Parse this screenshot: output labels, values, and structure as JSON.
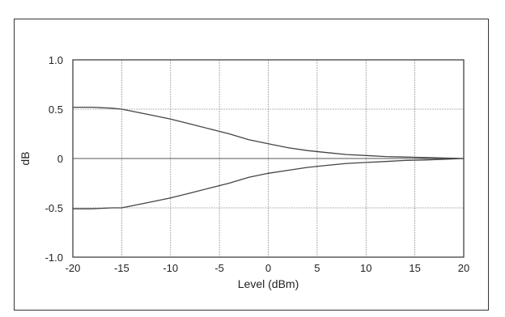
{
  "chart_data": {
    "type": "line",
    "xlabel": "Level (dBm)",
    "ylabel": "dB",
    "xlim": [
      -20,
      20
    ],
    "ylim": [
      -1.0,
      1.0
    ],
    "xticks": [
      -20,
      -15,
      -10,
      -5,
      0,
      5,
      10,
      15,
      20
    ],
    "xtick_labels": [
      "-20",
      "-15",
      "-10",
      "-5",
      "0",
      "5",
      "10",
      "15",
      "20"
    ],
    "yticks": [
      1.0,
      0.5,
      0,
      -0.5,
      -1.0
    ],
    "ytick_labels": [
      "1.0",
      "0.5",
      "0",
      "-0.5",
      "-1.0"
    ],
    "grid": true,
    "legend": "none",
    "line_color": "#444444",
    "series": [
      {
        "x": [
          -20,
          -18,
          -16,
          -15,
          -14,
          -12,
          -10,
          -8,
          -6,
          -4,
          -2,
          0,
          2,
          4,
          6,
          8,
          10,
          12,
          14,
          16,
          18,
          20
        ],
        "values": [
          0.52,
          0.52,
          0.51,
          0.5,
          0.48,
          0.44,
          0.4,
          0.35,
          0.3,
          0.25,
          0.19,
          0.15,
          0.11,
          0.08,
          0.06,
          0.04,
          0.03,
          0.02,
          0.015,
          0.01,
          0.005,
          0.0
        ]
      },
      {
        "x": [
          -20,
          -18,
          -16,
          -15,
          -14,
          -12,
          -10,
          -8,
          -6,
          -4,
          -2,
          0,
          2,
          4,
          6,
          8,
          10,
          12,
          14,
          16,
          18,
          20
        ],
        "values": [
          -0.51,
          -0.51,
          -0.5,
          -0.5,
          -0.48,
          -0.44,
          -0.4,
          -0.35,
          -0.3,
          -0.25,
          -0.19,
          -0.15,
          -0.12,
          -0.09,
          -0.07,
          -0.05,
          -0.04,
          -0.03,
          -0.02,
          -0.015,
          -0.008,
          0.0
        ]
      }
    ]
  }
}
